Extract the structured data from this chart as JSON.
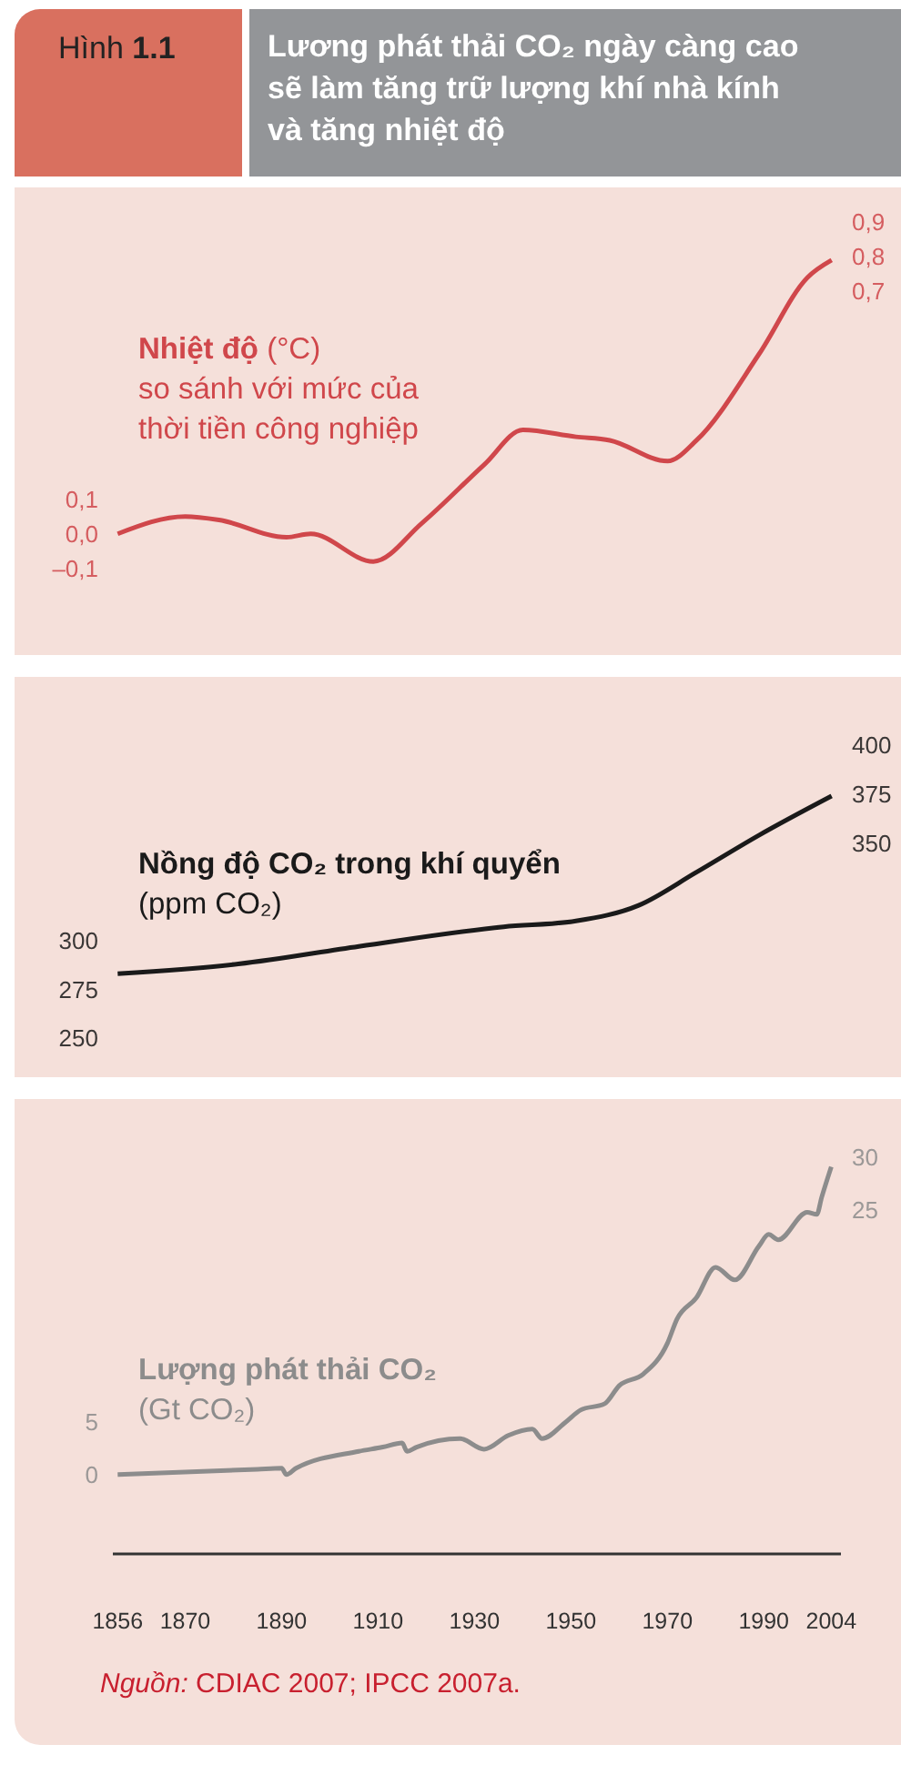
{
  "chart_data": [
    {
      "type": "line",
      "subtitle": "Hình 1.1",
      "title": "Lương phát thải CO₂ ngày càng cao sẽ làm tăng trữ lượng khí nhà kính và tăng nhiệt độ",
      "ylabel": "(°C)",
      "annotations": [
        "so sánh với mức của thời tiền công nghiệp"
      ],
      "tick_labels": "y",
      "grid": false,
      "legend": false,
      "x": [
        1856,
        1870,
        1877,
        1891,
        1896,
        1909,
        1919,
        1932,
        1940,
        1951,
        1958,
        1970,
        1976,
        1989,
        1999,
        2004
      ],
      "xlim": [
        1835,
        2018
      ],
      "xticks": [
        1856,
        1870,
        1890,
        1910,
        1930,
        1950,
        1970,
        1990,
        2004
      ],
      "ylim": [
        -0.35,
        1.0
      ],
      "yticks": [
        {
          "value": -0.1,
          "label": "–0,1"
        },
        {
          "value": 0,
          "label": "0,0"
        },
        {
          "value": 0.1,
          "label": "0,1"
        }
      ],
      "y2lim": [
        -0.35,
        1.0
      ],
      "y2ticks": [
        {
          "value": 0.7,
          "label": "0,7"
        },
        {
          "value": 0.8,
          "label": "0,8"
        },
        {
          "value": 0.9,
          "label": "0,9"
        }
      ],
      "series": [
        {
          "name": "Nhiệt độ",
          "color": "#d0474b",
          "values": [
            0,
            0.05,
            0.04,
            -0.01,
            0,
            -0.08,
            0.03,
            0.2,
            0.3,
            0.28,
            0.27,
            0.21,
            0.27,
            0.52,
            0.74,
            0.79
          ]
        }
      ]
    },
    {
      "type": "line",
      "ylabel": "(ppm CO₂)",
      "tick_labels": "y",
      "grid": false,
      "legend": false,
      "x": [
        1856,
        1881,
        1906,
        1936,
        1951,
        1964,
        1976,
        1989,
        2004
      ],
      "xlim": [
        1835,
        2018
      ],
      "xticks": [
        1856,
        1870,
        1890,
        1910,
        1930,
        1950,
        1970,
        1990,
        2004
      ],
      "ylim": [
        230,
        435
      ],
      "yticks": [
        250,
        275,
        300
      ],
      "y2lim": [
        230,
        435
      ],
      "y2ticks": [
        350,
        375,
        400
      ],
      "series": [
        {
          "name": "Nồng độ CO₂ trong khí quyển",
          "color": "#1a1a1a",
          "values": [
            283,
            288,
            297,
            307,
            310,
            318,
            335,
            354,
            374
          ]
        }
      ]
    },
    {
      "type": "line",
      "ylabel": "(Gt CO₂)",
      "annotations": [
        "Nguồn: CDIAC 2007; IPCC 2007a."
      ],
      "grid": false,
      "legend": false,
      "x": [
        1856,
        1885,
        1890,
        1891,
        1893,
        1906,
        1911,
        1915,
        1916,
        1918,
        1927,
        1932,
        1937,
        1942,
        1944,
        1949,
        1952,
        1957,
        1960,
        1965,
        1970,
        1972,
        1976,
        1980,
        1984,
        1989,
        1991,
        1993,
        1999,
        2001,
        2002,
        2004
      ],
      "xlim": [
        1855,
        2006
      ],
      "xticks": [
        1856,
        1870,
        1890,
        1910,
        1930,
        1950,
        1970,
        1990,
        2004
      ],
      "ylim": [
        -7.5,
        35.5
      ],
      "yticks": [
        0,
        5
      ],
      "y2lim": [
        -7.5,
        35.5
      ],
      "y2ticks": [
        25,
        30
      ],
      "series": [
        {
          "name": "Lượng phát thải CO₂",
          "color": "#8c8c8c",
          "values": [
            0,
            0.5,
            0.6,
            0,
            0.6,
            2.2,
            2.6,
            3.0,
            2.2,
            2.6,
            3.4,
            2.4,
            3.7,
            4.3,
            3.4,
            5.0,
            6.1,
            6.7,
            8.4,
            9.5,
            12.4,
            14.7,
            16.7,
            19.6,
            18.4,
            21.6,
            22.7,
            22.2,
            24.8,
            24.6,
            26.2,
            29.1
          ]
        }
      ]
    }
  ]
}
